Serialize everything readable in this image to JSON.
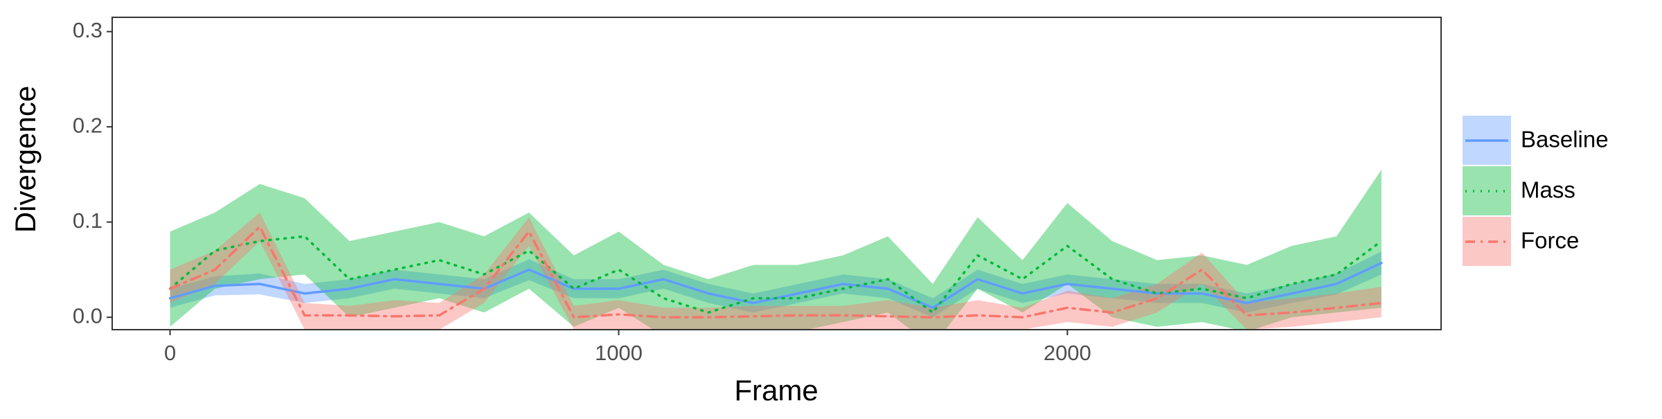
{
  "chart_data": {
    "type": "line-band",
    "x_label": "Frame",
    "y_label": "Divergence",
    "x": [
      0,
      100,
      200,
      300,
      400,
      500,
      600,
      700,
      800,
      900,
      1000,
      1100,
      1200,
      1300,
      1400,
      1500,
      1600,
      1700,
      1800,
      1900,
      2000,
      2100,
      2200,
      2300,
      2400,
      2500,
      2600,
      2700
    ],
    "xlim": [
      -129,
      2833
    ],
    "ylim": [
      -0.013,
      0.315
    ],
    "xticks": [
      0,
      1000,
      2000
    ],
    "yticks": [
      {
        "value": 0,
        "label": "0.0"
      },
      0.1,
      0.2,
      0.3
    ],
    "series": [
      {
        "name": "Baseline",
        "color": "#619CFF",
        "dash": "solid",
        "values": [
          0.02,
          0.033,
          0.035,
          0.025,
          0.03,
          0.04,
          0.035,
          0.03,
          0.05,
          0.03,
          0.03,
          0.04,
          0.025,
          0.015,
          0.025,
          0.035,
          0.03,
          0.01,
          0.04,
          0.025,
          0.035,
          0.03,
          0.025,
          0.025,
          0.015,
          0.025,
          0.035,
          0.057
        ],
        "lower": [
          0.01,
          0.023,
          0.024,
          0.015,
          0.02,
          0.03,
          0.025,
          0.02,
          0.039,
          0.02,
          0.02,
          0.03,
          0.015,
          0.005,
          0.015,
          0.025,
          0.02,
          0.0,
          0.03,
          0.015,
          0.025,
          0.02,
          0.015,
          0.015,
          0.005,
          0.015,
          0.024,
          0.045
        ],
        "upper": [
          0.03,
          0.043,
          0.046,
          0.035,
          0.04,
          0.05,
          0.045,
          0.04,
          0.061,
          0.04,
          0.04,
          0.05,
          0.035,
          0.025,
          0.035,
          0.045,
          0.04,
          0.02,
          0.05,
          0.035,
          0.045,
          0.04,
          0.035,
          0.035,
          0.025,
          0.035,
          0.046,
          0.069
        ]
      },
      {
        "name": "Mass",
        "color": "#00BA38",
        "dash": "dot",
        "values": [
          0.03,
          0.07,
          0.08,
          0.085,
          0.04,
          0.05,
          0.06,
          0.045,
          0.07,
          0.03,
          0.05,
          0.02,
          0.005,
          0.02,
          0.02,
          0.03,
          0.04,
          0.005,
          0.065,
          0.04,
          0.075,
          0.04,
          0.025,
          0.03,
          0.02,
          0.035,
          0.045,
          0.08
        ],
        "lower": [
          -0.01,
          0.03,
          0.04,
          0.045,
          0.0,
          0.01,
          0.02,
          0.005,
          0.03,
          -0.01,
          0.01,
          -0.02,
          -0.03,
          -0.015,
          -0.015,
          -0.005,
          0.005,
          -0.03,
          0.03,
          0.005,
          0.035,
          0.0,
          -0.01,
          -0.005,
          -0.015,
          0.0,
          0.005,
          0.01
        ],
        "upper": [
          0.09,
          0.11,
          0.14,
          0.125,
          0.08,
          0.09,
          0.1,
          0.085,
          0.11,
          0.065,
          0.09,
          0.055,
          0.04,
          0.055,
          0.055,
          0.065,
          0.085,
          0.035,
          0.105,
          0.06,
          0.12,
          0.08,
          0.06,
          0.065,
          0.055,
          0.075,
          0.085,
          0.155
        ]
      },
      {
        "name": "Force",
        "color": "#F8766D",
        "dash": "dashdot",
        "values": [
          0.03,
          0.05,
          0.095,
          0.002,
          0.002,
          0.001,
          0.002,
          0.03,
          0.09,
          0.0,
          0.003,
          0.0,
          0.0,
          0.001,
          0.002,
          0.002,
          0.001,
          0.0,
          0.002,
          0.0,
          0.01,
          0.005,
          0.02,
          0.05,
          0.002,
          0.005,
          0.01,
          0.015
        ],
        "lower": [
          0.015,
          0.035,
          0.08,
          -0.013,
          -0.013,
          -0.013,
          -0.013,
          0.015,
          0.075,
          -0.013,
          -0.013,
          -0.013,
          -0.013,
          -0.013,
          -0.013,
          -0.013,
          -0.013,
          -0.013,
          -0.013,
          -0.013,
          -0.005,
          -0.01,
          0.005,
          0.035,
          -0.013,
          -0.01,
          -0.005,
          0.0
        ],
        "upper": [
          0.05,
          0.07,
          0.11,
          0.015,
          0.012,
          0.018,
          0.015,
          0.045,
          0.105,
          0.012,
          0.018,
          0.01,
          0.01,
          0.012,
          0.012,
          0.012,
          0.018,
          0.01,
          0.018,
          0.01,
          0.028,
          0.02,
          0.035,
          0.068,
          0.015,
          0.02,
          0.025,
          0.032
        ]
      }
    ]
  }
}
